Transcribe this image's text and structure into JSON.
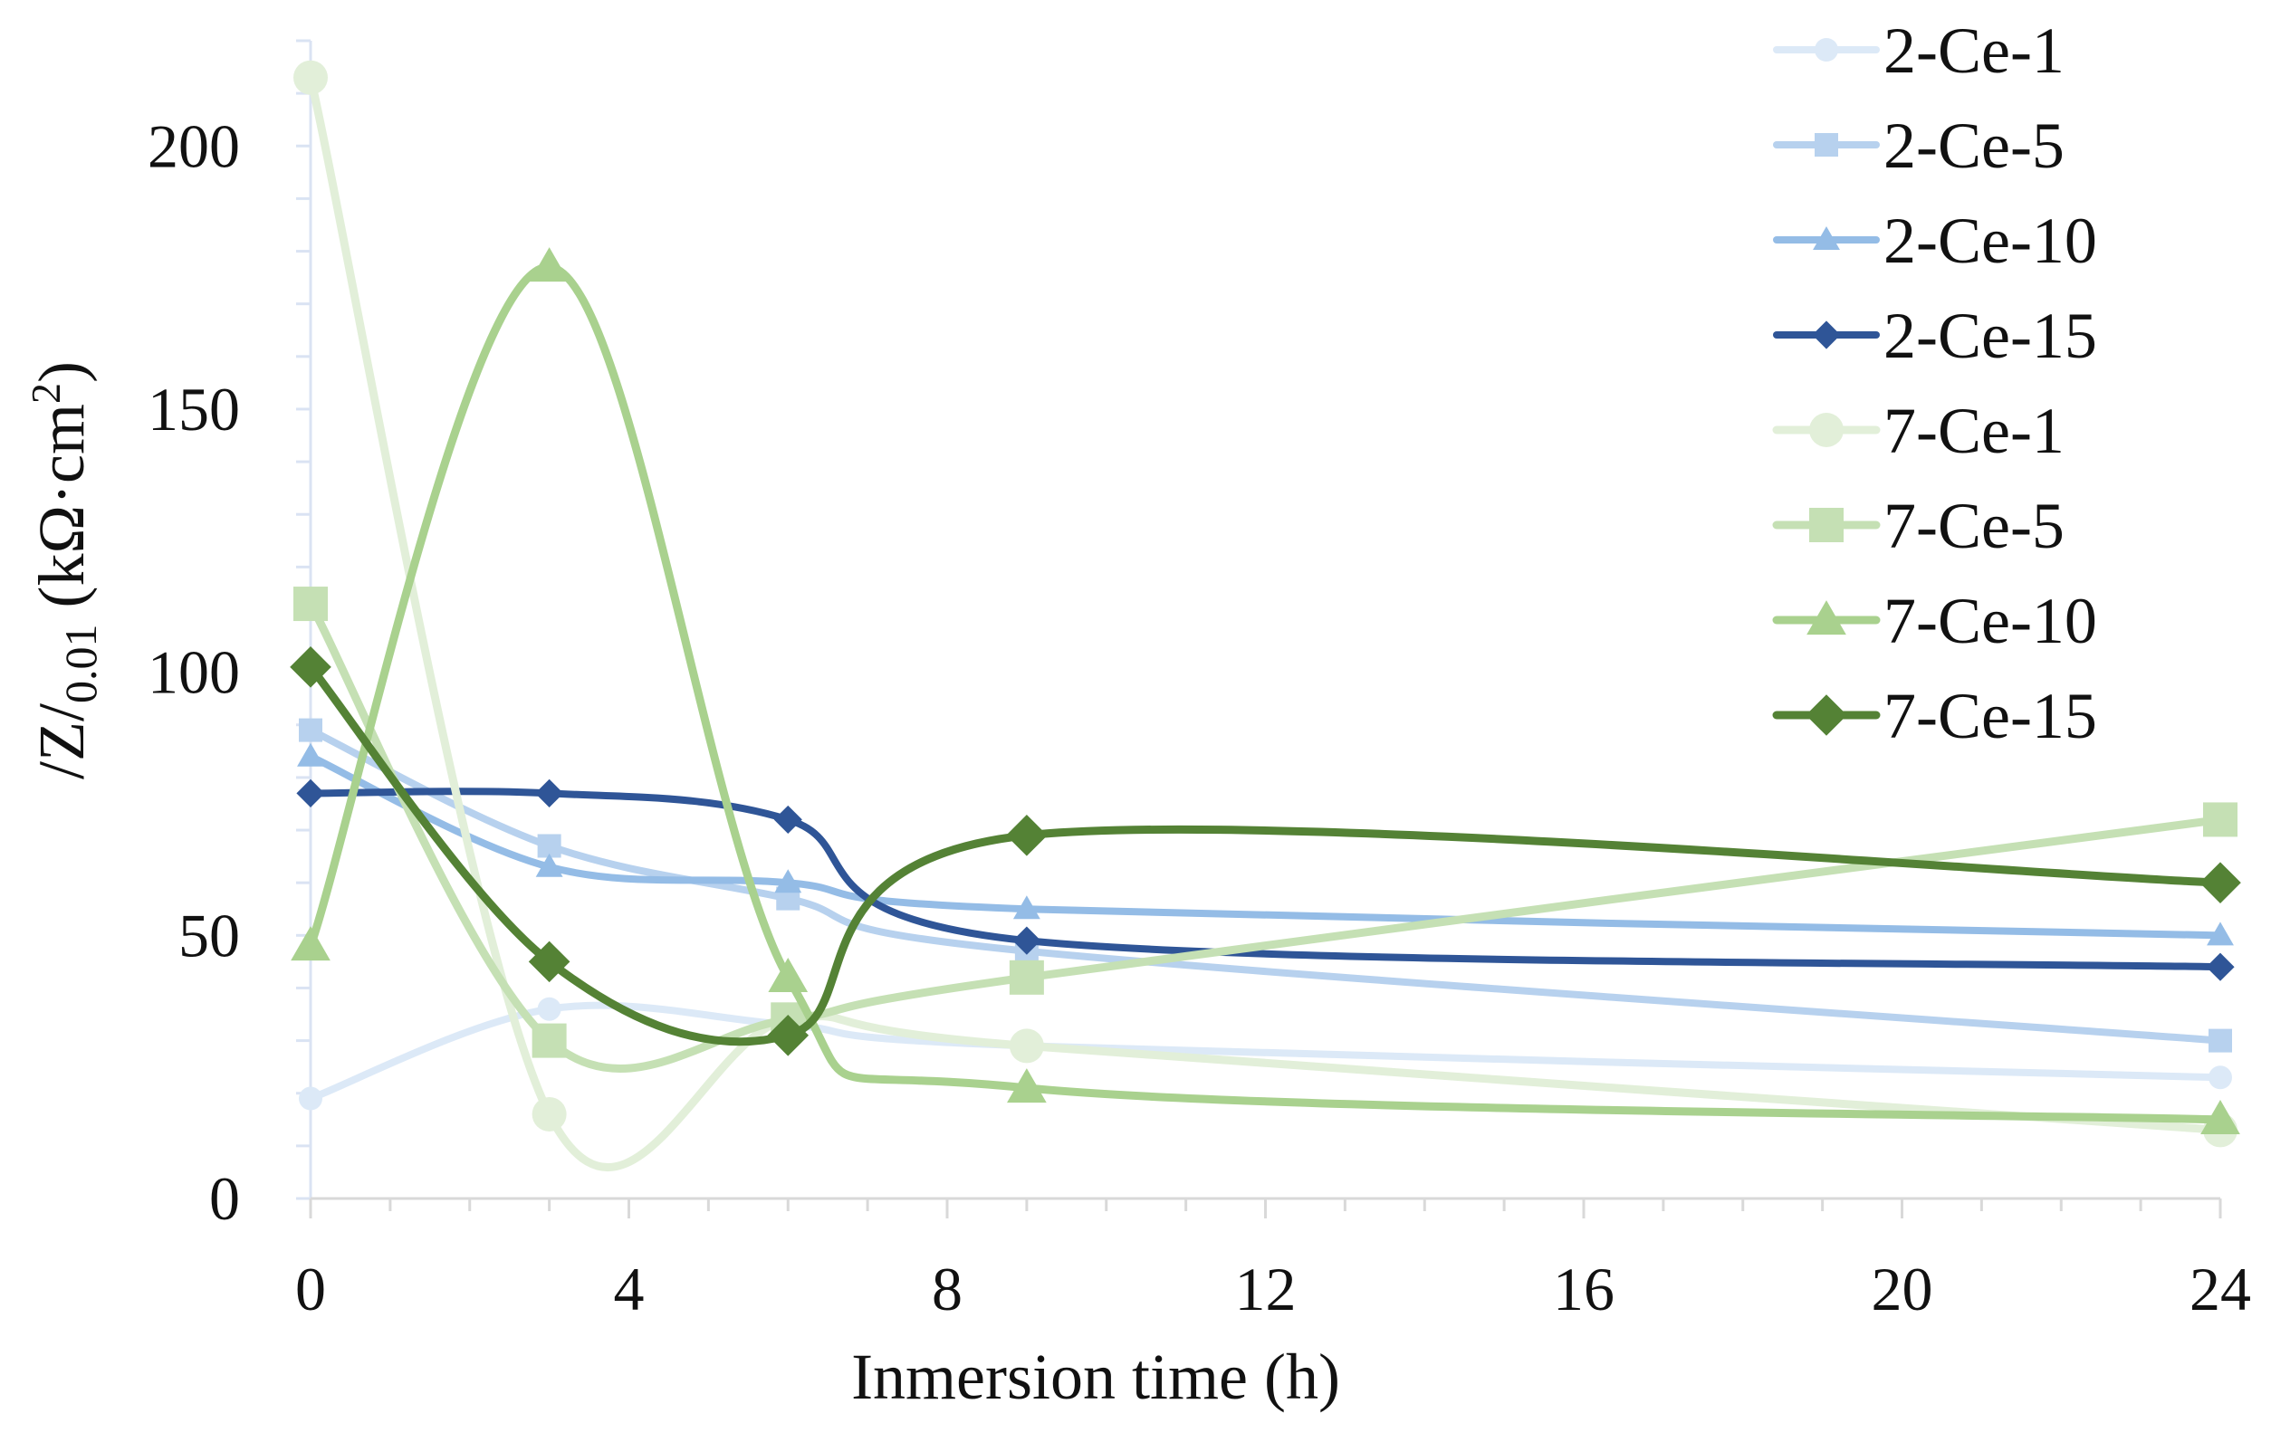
{
  "chart_data": {
    "type": "line",
    "title": "",
    "xlabel": "Inmersion time (h)",
    "ylabel": {
      "main": "/Z/",
      "subscript": "0.01",
      "unit_open": " (kΩ·cm",
      "unit_sup": "2",
      "unit_close": ")"
    },
    "x": [
      0,
      3,
      6,
      9,
      24
    ],
    "xlim": [
      0,
      24
    ],
    "ylim": [
      0,
      220
    ],
    "x_ticks": [
      0,
      4,
      8,
      12,
      16,
      20,
      24
    ],
    "x_tick_labels": [
      "0",
      "4",
      "8",
      "12",
      "16",
      "20",
      "24"
    ],
    "y_ticks": [
      0,
      50,
      100,
      150,
      200
    ],
    "y_tick_labels": [
      "0",
      "50",
      "100",
      "150",
      "200"
    ],
    "grid": false,
    "smooth": true,
    "legend_position": "top-right",
    "series": [
      {
        "name": "2-Ce-1",
        "values": [
          19,
          36,
          33,
          29,
          23
        ],
        "color": "#dce9f7",
        "marker": "circle",
        "weight": "thin"
      },
      {
        "name": "2-Ce-5",
        "values": [
          89,
          67,
          57,
          47,
          30
        ],
        "color": "#b7d1ee",
        "marker": "square",
        "weight": "thin"
      },
      {
        "name": "2-Ce-10",
        "values": [
          84,
          63,
          60,
          55,
          50
        ],
        "color": "#94bce6",
        "marker": "triangle",
        "weight": "thin"
      },
      {
        "name": "2-Ce-15",
        "values": [
          77,
          77,
          72,
          49,
          44
        ],
        "color": "#2f5597",
        "marker": "diamond",
        "weight": "thin"
      },
      {
        "name": "7-Ce-1",
        "values": [
          213,
          16,
          34,
          29,
          13
        ],
        "color": "#e2efd9",
        "marker": "circle",
        "weight": "thick"
      },
      {
        "name": "7-Ce-5",
        "values": [
          113,
          30,
          34,
          42,
          72
        ],
        "color": "#c5e0b4",
        "marker": "square",
        "weight": "thick"
      },
      {
        "name": "7-Ce-10",
        "values": [
          48,
          177,
          42,
          21,
          15
        ],
        "color": "#a9d18e",
        "marker": "triangle",
        "weight": "thick"
      },
      {
        "name": "7-Ce-15",
        "values": [
          101,
          45,
          31,
          69,
          60
        ],
        "color": "#548235",
        "marker": "diamond",
        "weight": "thick"
      }
    ]
  }
}
